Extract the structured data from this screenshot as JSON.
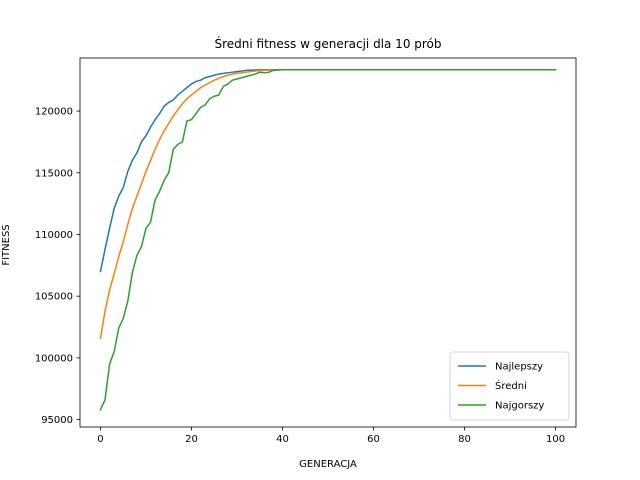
{
  "chart_data": {
    "type": "line",
    "title": "Średni fitness w generacji dla 10 prób",
    "xlabel": "GENERACJA",
    "ylabel": "FITNESS",
    "xlim": [
      -4.5,
      104.5
    ],
    "ylim": [
      94400,
      124300
    ],
    "x_ticks": [
      0,
      20,
      40,
      60,
      80,
      100
    ],
    "y_ticks": [
      95000,
      100000,
      105000,
      110000,
      115000,
      120000
    ],
    "grid": false,
    "legend_position": "lower-right",
    "series": [
      {
        "name": "Najlepszy",
        "color": "#1f77b4",
        "points": [
          [
            0,
            107000
          ],
          [
            1,
            108800
          ],
          [
            2,
            110500
          ],
          [
            3,
            112100
          ],
          [
            4,
            113100
          ],
          [
            5,
            113800
          ],
          [
            6,
            115100
          ],
          [
            7,
            116000
          ],
          [
            8,
            116600
          ],
          [
            9,
            117500
          ],
          [
            10,
            118000
          ],
          [
            11,
            118700
          ],
          [
            12,
            119300
          ],
          [
            13,
            119800
          ],
          [
            14,
            120400
          ],
          [
            15,
            120700
          ],
          [
            16,
            120900
          ],
          [
            17,
            121300
          ],
          [
            18,
            121600
          ],
          [
            19,
            121900
          ],
          [
            20,
            122200
          ],
          [
            21,
            122400
          ],
          [
            22,
            122500
          ],
          [
            23,
            122700
          ],
          [
            24,
            122800
          ],
          [
            25,
            122900
          ],
          [
            26,
            123000
          ],
          [
            27,
            123050
          ],
          [
            28,
            123100
          ],
          [
            29,
            123150
          ],
          [
            30,
            123200
          ],
          [
            31,
            123250
          ],
          [
            32,
            123300
          ],
          [
            33,
            123320
          ],
          [
            34,
            123330
          ],
          [
            35,
            123340
          ],
          [
            40,
            123350
          ],
          [
            100,
            123350
          ]
        ]
      },
      {
        "name": "Średni",
        "color": "#ff7f0e",
        "points": [
          [
            0,
            101600
          ],
          [
            1,
            103800
          ],
          [
            2,
            105500
          ],
          [
            3,
            106800
          ],
          [
            4,
            108200
          ],
          [
            5,
            109400
          ],
          [
            6,
            110800
          ],
          [
            7,
            112100
          ],
          [
            8,
            113100
          ],
          [
            9,
            114100
          ],
          [
            10,
            115100
          ],
          [
            11,
            116000
          ],
          [
            12,
            116900
          ],
          [
            13,
            117700
          ],
          [
            14,
            118400
          ],
          [
            15,
            119000
          ],
          [
            16,
            119600
          ],
          [
            17,
            120100
          ],
          [
            18,
            120600
          ],
          [
            19,
            121000
          ],
          [
            20,
            121300
          ],
          [
            21,
            121600
          ],
          [
            22,
            121900
          ],
          [
            23,
            122100
          ],
          [
            24,
            122300
          ],
          [
            25,
            122500
          ],
          [
            26,
            122650
          ],
          [
            27,
            122800
          ],
          [
            28,
            122900
          ],
          [
            29,
            123000
          ],
          [
            30,
            123050
          ],
          [
            31,
            123100
          ],
          [
            32,
            123150
          ],
          [
            33,
            123200
          ],
          [
            34,
            123250
          ],
          [
            35,
            123280
          ],
          [
            36,
            123300
          ],
          [
            37,
            123320
          ],
          [
            38,
            123330
          ],
          [
            40,
            123350
          ],
          [
            100,
            123350
          ]
        ]
      },
      {
        "name": "Najgorszy",
        "color": "#2ca02c",
        "points": [
          [
            0,
            95800
          ],
          [
            1,
            96600
          ],
          [
            2,
            99500
          ],
          [
            3,
            100500
          ],
          [
            4,
            102400
          ],
          [
            5,
            103200
          ],
          [
            6,
            104600
          ],
          [
            7,
            106900
          ],
          [
            8,
            108300
          ],
          [
            9,
            109000
          ],
          [
            10,
            110500
          ],
          [
            11,
            111000
          ],
          [
            12,
            112800
          ],
          [
            13,
            113500
          ],
          [
            14,
            114400
          ],
          [
            15,
            115000
          ],
          [
            16,
            116900
          ],
          [
            17,
            117300
          ],
          [
            18,
            117500
          ],
          [
            19,
            119200
          ],
          [
            20,
            119300
          ],
          [
            21,
            119800
          ],
          [
            22,
            120300
          ],
          [
            23,
            120500
          ],
          [
            24,
            121000
          ],
          [
            25,
            121200
          ],
          [
            26,
            121300
          ],
          [
            27,
            122000
          ],
          [
            28,
            122200
          ],
          [
            29,
            122500
          ],
          [
            30,
            122600
          ],
          [
            31,
            122700
          ],
          [
            32,
            122800
          ],
          [
            33,
            122900
          ],
          [
            34,
            123000
          ],
          [
            35,
            123150
          ],
          [
            36,
            123100
          ],
          [
            37,
            123150
          ],
          [
            38,
            123300
          ],
          [
            40,
            123350
          ],
          [
            100,
            123350
          ]
        ]
      }
    ]
  }
}
